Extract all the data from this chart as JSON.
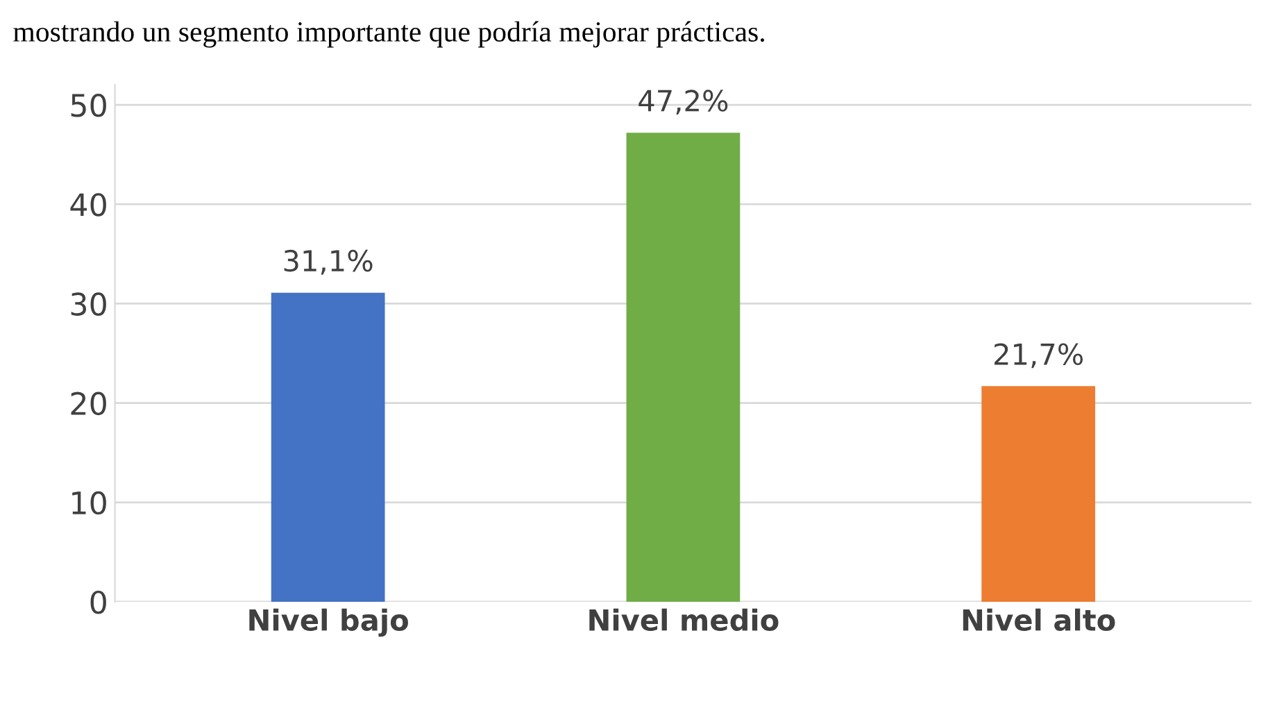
{
  "chart_data": {
    "type": "bar",
    "title": "mostrando un segmento importante que podría mejorar prácticas.",
    "categories": [
      "Nivel bajo",
      "Nivel medio",
      "Nivel alto"
    ],
    "values": [
      31.1,
      47.2,
      21.7
    ],
    "colors": [
      "#4472c4",
      "#70ad47",
      "#ed7d31"
    ],
    "value_labels": [
      "31,1%",
      "47,2%",
      "21,7%"
    ],
    "ylim": [
      0,
      52
    ],
    "yticks": [
      0,
      10,
      20,
      30,
      40,
      50
    ],
    "grid": "y"
  }
}
